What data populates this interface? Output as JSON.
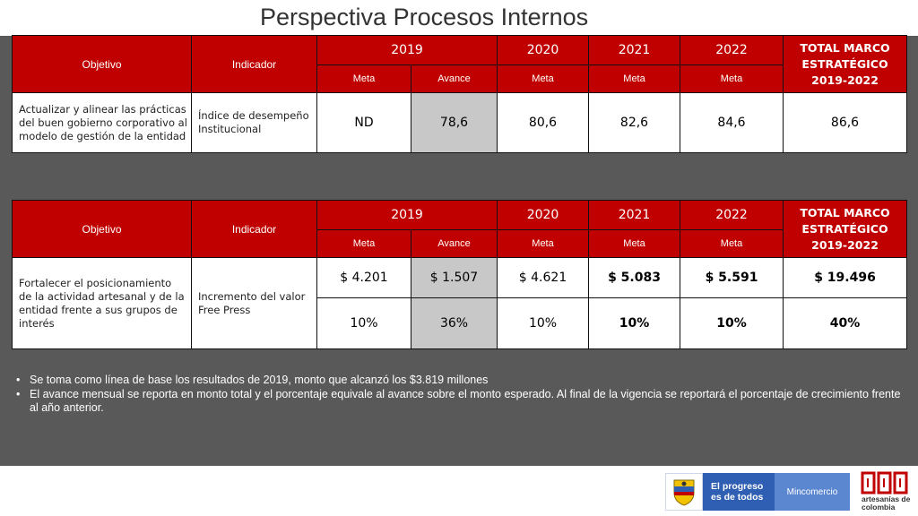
{
  "slide": {
    "title": "Perspectiva Procesos Internos"
  },
  "table1": {
    "headers": {
      "objetivo": "Objetivo",
      "indicador": "Indicador",
      "years": [
        "2019",
        "2020",
        "2021",
        "2022"
      ],
      "total": "TOTAL MARCO ESTRATÉGICO 2019-2022",
      "sub": [
        "Meta",
        "Avance",
        "Meta",
        "Meta",
        "Meta"
      ]
    },
    "row": {
      "objetivo": "Actualizar y alinear las prácticas del buen gobierno corporativo al modelo de gestión de la entidad",
      "indicador": "Índice de desempeño Institucional",
      "values": [
        "ND",
        "78,6",
        "80,6",
        "82,6",
        "84,6",
        "86,6"
      ]
    }
  },
  "table2": {
    "headers": {
      "objetivo": "Objetivo",
      "indicador": "Indicador",
      "years": [
        "2019",
        "2020",
        "2021",
        "2022"
      ],
      "total": "TOTAL MARCO ESTRATÉGICO 2019-2022",
      "sub": [
        "Meta",
        "Avance",
        "Meta",
        "Meta",
        "Meta"
      ]
    },
    "objetivo": "Fortalecer el posicionamiento de la actividad artesanal y de la entidad frente a sus grupos de interés",
    "indicador": "Incremento del valor Free Press",
    "rows": [
      [
        "$ 4.201",
        "$ 1.507",
        "$ 4.621",
        "$ 5.083",
        "$ 5.591",
        "$ 19.496"
      ],
      [
        "10%",
        "36%",
        "10%",
        "10%",
        "10%",
        "40%"
      ]
    ]
  },
  "notes": [
    "Se toma como línea de base los resultados de 2019, monto que alcanzó los $3.819 millones",
    "El avance mensual se reporta en monto total y el porcentaje equivale al avance sobre el monto esperado. Al final de la vigencia se reportará el porcentaje de crecimiento frente al año anterior."
  ],
  "footer": {
    "gov_slogan": "El progreso es de todos",
    "ministry": "Mincomercio",
    "brand_name": "artesanías de colombia"
  },
  "colors": {
    "header_red": "#c00000",
    "background_gray": "#595959",
    "highlight_gray": "#c8c8c8",
    "gov_blue": "#2f5fb3"
  }
}
